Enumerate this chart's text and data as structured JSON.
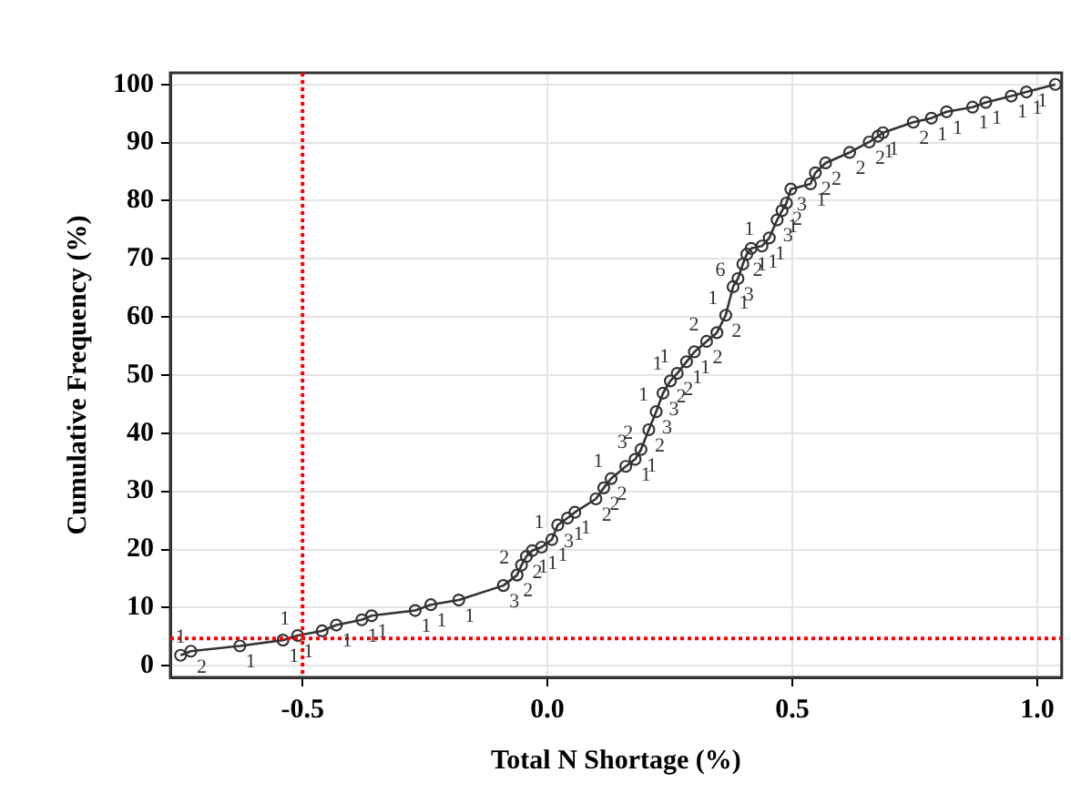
{
  "chart_data": {
    "type": "line",
    "xlabel": "Total N Shortage (%)",
    "ylabel": "Cumulative Frequency (%)",
    "xlim": [
      -0.77,
      1.05
    ],
    "ylim": [
      -2,
      102
    ],
    "xticks": [
      -0.5,
      {
        "value": 0,
        "label": "0.0"
      },
      0.5,
      {
        "value": 1,
        "label": "1.0"
      }
    ],
    "yticks": [
      0,
      10,
      20,
      30,
      40,
      50,
      60,
      70,
      80,
      90,
      100
    ],
    "grid": true,
    "marker": "circle",
    "line_style": "solid",
    "series": [
      {
        "color": "#333333",
        "x": [
          -0.749,
          -0.728,
          -0.628,
          -0.54,
          -0.51,
          -0.46,
          -0.431,
          -0.379,
          -0.359,
          -0.27,
          -0.238,
          -0.181,
          -0.09,
          -0.062,
          -0.053,
          -0.043,
          -0.031,
          -0.012,
          0.009,
          0.021,
          0.041,
          0.056,
          0.099,
          0.115,
          0.13,
          0.16,
          0.179,
          0.191,
          0.207,
          0.222,
          0.236,
          0.251,
          0.265,
          0.284,
          0.3,
          0.325,
          0.346,
          0.364,
          0.379,
          0.389,
          0.399,
          0.407,
          0.416,
          0.438,
          0.453,
          0.469,
          0.479,
          0.488,
          0.497,
          0.537,
          0.547,
          0.568,
          0.617,
          0.657,
          0.675,
          0.685,
          0.747,
          0.784,
          0.815,
          0.868,
          0.895,
          0.947,
          0.978,
          1.037
        ],
        "values": [
          1.8,
          2.5,
          3.4,
          4.4,
          5.2,
          6,
          7,
          7.9,
          8.6,
          9.5,
          10.5,
          11.3,
          13.8,
          15.6,
          17.3,
          18.8,
          19.8,
          20.4,
          21.7,
          24.2,
          25.4,
          26.4,
          28.7,
          30.6,
          32.2,
          34.3,
          35.5,
          37.2,
          40.6,
          43.7,
          46.9,
          49,
          50.3,
          52.3,
          54,
          55.8,
          57.3,
          60.3,
          65.2,
          66.6,
          69.1,
          70.8,
          71.8,
          72.2,
          73.6,
          76.7,
          78.3,
          79.6,
          82,
          82.9,
          84.8,
          86.5,
          88.3,
          90.1,
          91.1,
          91.7,
          93.5,
          94.2,
          95.3,
          96.1,
          96.9,
          98,
          98.7,
          100
        ]
      }
    ],
    "ref_lines": [
      {
        "axis": "x",
        "value": -0.5,
        "color": "#ff0000",
        "line_style": "dotted"
      },
      {
        "axis": "y",
        "value": 4.7,
        "color": "#ff0000",
        "line_style": "dotted"
      }
    ],
    "annotations": [
      {
        "text": "1",
        "x": -0.749,
        "y": 1.8
      },
      {
        "text": "2",
        "x": -0.728,
        "y": 2.5
      },
      {
        "text": "1",
        "x": -0.628,
        "y": 3.4
      },
      {
        "text": "1",
        "x": -0.54,
        "y": 4.4
      },
      {
        "text": "1",
        "x": -0.51,
        "y": 5.2
      },
      {
        "text": "1",
        "x": -0.51,
        "y": 5.2
      },
      {
        "text": "1",
        "x": -0.379,
        "y": 7.9
      },
      {
        "text": "1",
        "x": -0.431,
        "y": 7
      },
      {
        "text": "1",
        "x": -0.359,
        "y": 8.6
      },
      {
        "text": "1",
        "x": -0.27,
        "y": 9.5
      },
      {
        "text": "1",
        "x": -0.181,
        "y": 11.3
      },
      {
        "text": "1",
        "x": -0.238,
        "y": 10.5
      },
      {
        "text": "2",
        "x": -0.062,
        "y": 15.6
      },
      {
        "text": "3",
        "x": -0.09,
        "y": 13.8
      },
      {
        "text": "2",
        "x": -0.062,
        "y": 15.6
      },
      {
        "text": "1",
        "x": -0.031,
        "y": 19.8
      },
      {
        "text": "2",
        "x": -0.043,
        "y": 18.8
      },
      {
        "text": "3",
        "x": 0.021,
        "y": 24.2
      },
      {
        "text": "1",
        "x": 0.009,
        "y": 21.7
      },
      {
        "text": "1",
        "x": -0.012,
        "y": 20.4
      },
      {
        "text": "1",
        "x": 0.056,
        "y": 26.4
      },
      {
        "text": "1",
        "x": 0.041,
        "y": 25.4
      },
      {
        "text": "1",
        "x": 0.009,
        "y": 21.7
      },
      {
        "text": "2",
        "x": 0.115,
        "y": 30.6
      },
      {
        "text": "2",
        "x": 0.13,
        "y": 32.2
      },
      {
        "text": "1",
        "x": 0.179,
        "y": 35.5
      },
      {
        "text": "2",
        "x": 0.099,
        "y": 28.7
      },
      {
        "text": "1",
        "x": 0.13,
        "y": 32.2
      },
      {
        "text": "1",
        "x": 0.191,
        "y": 37.2
      },
      {
        "text": "3",
        "x": 0.179,
        "y": 35.5
      },
      {
        "text": "2",
        "x": 0.191,
        "y": 37.2
      },
      {
        "text": "2",
        "x": 0.207,
        "y": 40.6
      },
      {
        "text": "3",
        "x": 0.222,
        "y": 43.7
      },
      {
        "text": "3",
        "x": 0.236,
        "y": 46.9
      },
      {
        "text": "1",
        "x": 0.222,
        "y": 43.7
      },
      {
        "text": "2",
        "x": 0.265,
        "y": 50.3
      },
      {
        "text": "2",
        "x": 0.251,
        "y": 49
      },
      {
        "text": "1",
        "x": 0.284,
        "y": 52.3
      },
      {
        "text": "1",
        "x": 0.251,
        "y": 49
      },
      {
        "text": "1",
        "x": 0.265,
        "y": 50.3
      },
      {
        "text": "1",
        "x": 0.3,
        "y": 54
      },
      {
        "text": "2",
        "x": 0.325,
        "y": 55.8
      },
      {
        "text": "2",
        "x": 0.364,
        "y": 60.3
      },
      {
        "text": "2",
        "x": 0.325,
        "y": 55.8
      },
      {
        "text": "1",
        "x": 0.379,
        "y": 65.2
      },
      {
        "text": "1",
        "x": 0.364,
        "y": 60.3
      },
      {
        "text": "6",
        "x": 0.379,
        "y": 65.2
      },
      {
        "text": "3",
        "x": 0.389,
        "y": 66.6
      },
      {
        "text": "2",
        "x": 0.407,
        "y": 70.8
      },
      {
        "text": "1",
        "x": 0.416,
        "y": 71.8
      },
      {
        "text": "3",
        "x": 0.469,
        "y": 76.7
      },
      {
        "text": "1",
        "x": 0.453,
        "y": 73.6
      },
      {
        "text": "1",
        "x": 0.438,
        "y": 72.2
      },
      {
        "text": "1",
        "x": 0.438,
        "y": 72.2
      },
      {
        "text": "2",
        "x": 0.488,
        "y": 79.6
      },
      {
        "text": "1",
        "x": 0.479,
        "y": 78.3
      },
      {
        "text": "3",
        "x": 0.497,
        "y": 82
      },
      {
        "text": "1",
        "x": 0.537,
        "y": 82.9
      },
      {
        "text": "2",
        "x": 0.547,
        "y": 84.8
      },
      {
        "text": "2",
        "x": 0.568,
        "y": 86.5
      },
      {
        "text": "2",
        "x": 0.617,
        "y": 88.3
      },
      {
        "text": "2",
        "x": 0.657,
        "y": 90.1
      },
      {
        "text": "1",
        "x": 0.675,
        "y": 91.1
      },
      {
        "text": "1",
        "x": 0.685,
        "y": 91.7
      },
      {
        "text": "2",
        "x": 0.747,
        "y": 93.5
      },
      {
        "text": "1",
        "x": 0.784,
        "y": 94.2
      },
      {
        "text": "1",
        "x": 0.868,
        "y": 96.1
      },
      {
        "text": "1",
        "x": 0.815,
        "y": 95.3
      },
      {
        "text": "1",
        "x": 0.895,
        "y": 96.9
      },
      {
        "text": "1",
        "x": 0.947,
        "y": 98
      },
      {
        "text": "1",
        "x": 0.978,
        "y": 98.7
      },
      {
        "text": "1",
        "x": 1.037,
        "y": 100
      }
    ]
  }
}
